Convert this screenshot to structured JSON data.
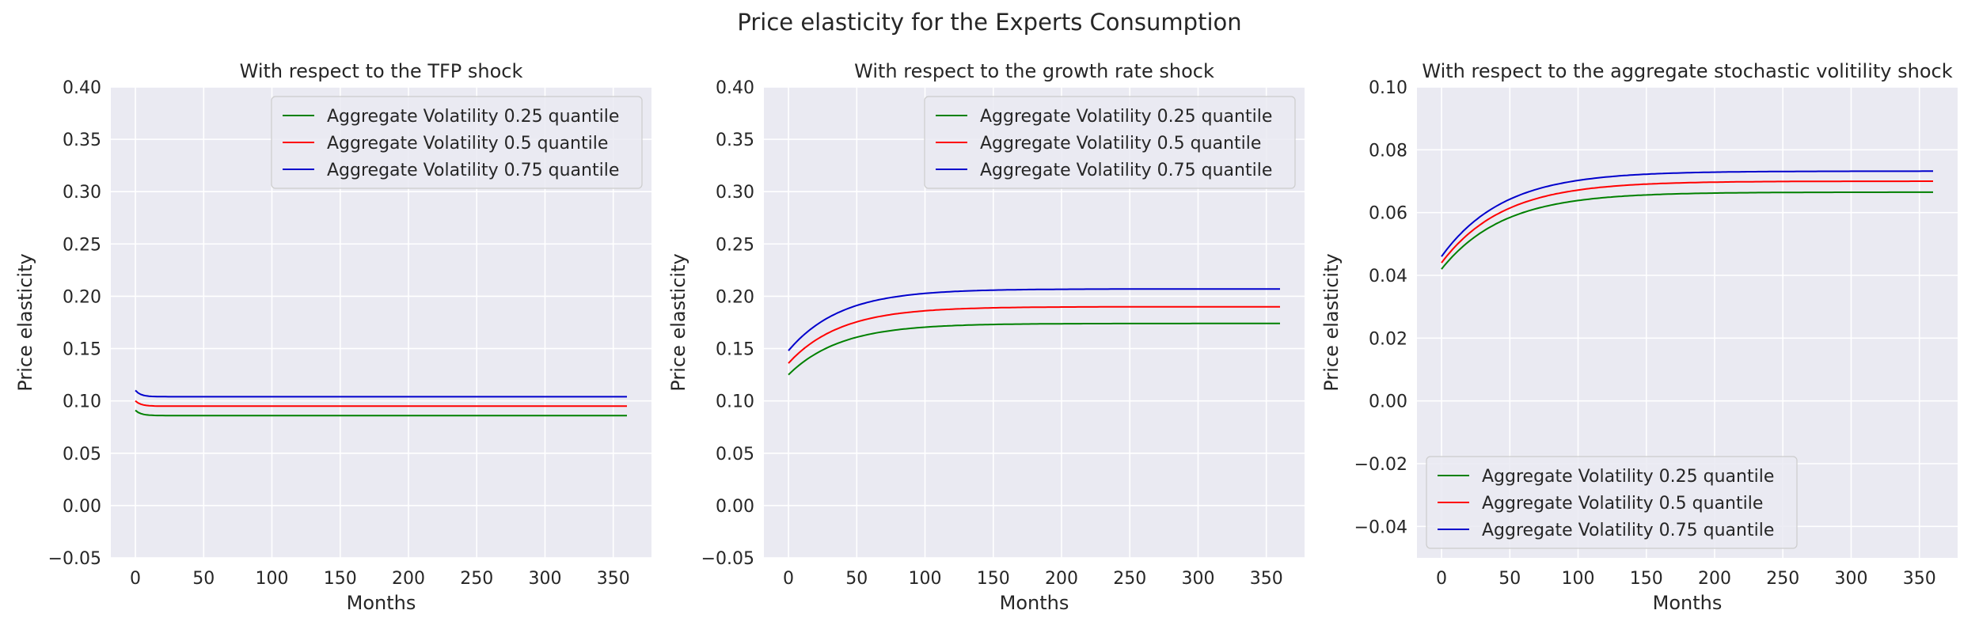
{
  "figure_title": "Price elasticity for the Experts Consumption",
  "colors": {
    "q25": "#008000",
    "q50": "#ff0000",
    "q75": "#0000cc",
    "plot_bg": "#eaeaf2",
    "grid": "#ffffff"
  },
  "chart_data": [
    {
      "type": "line",
      "title": "With respect to the TFP shock",
      "xlabel": "Months",
      "ylabel": "Price elasticity",
      "xlim": [
        -18,
        378
      ],
      "ylim": [
        -0.05,
        0.4
      ],
      "xticks": [
        0,
        50,
        100,
        150,
        200,
        250,
        300,
        350
      ],
      "yticks": [
        -0.05,
        0.0,
        0.05,
        0.1,
        0.15,
        0.2,
        0.25,
        0.3,
        0.35,
        0.4
      ],
      "ytick_labels": [
        "−0.05",
        "0.00",
        "0.05",
        "0.10",
        "0.15",
        "0.20",
        "0.25",
        "0.30",
        "0.35",
        "0.40"
      ],
      "grid": true,
      "legend_position": "upper right",
      "series": [
        {
          "name": "Aggregate Volatility 0.25 quantile",
          "color": "#008000",
          "start": 0.091,
          "end": 0.086,
          "tau": 4,
          "x_end": 360
        },
        {
          "name": "Aggregate Volatility 0.5 quantile",
          "color": "#ff0000",
          "start": 0.1,
          "end": 0.095,
          "tau": 4,
          "x_end": 360
        },
        {
          "name": "Aggregate Volatility 0.75 quantile",
          "color": "#0000cc",
          "start": 0.11,
          "end": 0.104,
          "tau": 4,
          "x_end": 360
        }
      ]
    },
    {
      "type": "line",
      "title": "With respect to the growth rate shock",
      "xlabel": "Months",
      "ylabel": "Price elasticity",
      "xlim": [
        -18,
        378
      ],
      "ylim": [
        -0.05,
        0.4
      ],
      "xticks": [
        0,
        50,
        100,
        150,
        200,
        250,
        300,
        350
      ],
      "yticks": [
        -0.05,
        0.0,
        0.05,
        0.1,
        0.15,
        0.2,
        0.25,
        0.3,
        0.35,
        0.4
      ],
      "ytick_labels": [
        "−0.05",
        "0.00",
        "0.05",
        "0.10",
        "0.15",
        "0.20",
        "0.25",
        "0.30",
        "0.35",
        "0.40"
      ],
      "grid": true,
      "legend_position": "upper right",
      "series": [
        {
          "name": "Aggregate Volatility 0.25 quantile",
          "color": "#008000",
          "start": 0.125,
          "end": 0.174,
          "tau": 38,
          "x_end": 360
        },
        {
          "name": "Aggregate Volatility 0.5 quantile",
          "color": "#ff0000",
          "start": 0.136,
          "end": 0.19,
          "tau": 38,
          "x_end": 360
        },
        {
          "name": "Aggregate Volatility 0.75 quantile",
          "color": "#0000cc",
          "start": 0.148,
          "end": 0.207,
          "tau": 38,
          "x_end": 360
        }
      ]
    },
    {
      "type": "line",
      "title": "With respect to the aggregate stochastic volitility shock",
      "xlabel": "Months",
      "ylabel": "Price elasticity",
      "xlim": [
        -18,
        378
      ],
      "ylim": [
        -0.05,
        0.1
      ],
      "xticks": [
        0,
        50,
        100,
        150,
        200,
        250,
        300,
        350
      ],
      "yticks": [
        -0.04,
        -0.02,
        0.0,
        0.02,
        0.04,
        0.06,
        0.08,
        0.1
      ],
      "ytick_labels": [
        "−0.04",
        "−0.02",
        "0.00",
        "0.02",
        "0.04",
        "0.06",
        "0.08",
        "0.10"
      ],
      "grid": true,
      "legend_position": "lower left",
      "series": [
        {
          "name": "Aggregate Volatility 0.25 quantile",
          "color": "#008000",
          "start": 0.042,
          "end": 0.0665,
          "tau": 45,
          "x_end": 360
        },
        {
          "name": "Aggregate Volatility 0.5 quantile",
          "color": "#ff0000",
          "start": 0.044,
          "end": 0.07,
          "tau": 45,
          "x_end": 360
        },
        {
          "name": "Aggregate Volatility 0.75 quantile",
          "color": "#0000cc",
          "start": 0.046,
          "end": 0.0732,
          "tau": 45,
          "x_end": 360
        }
      ]
    }
  ]
}
